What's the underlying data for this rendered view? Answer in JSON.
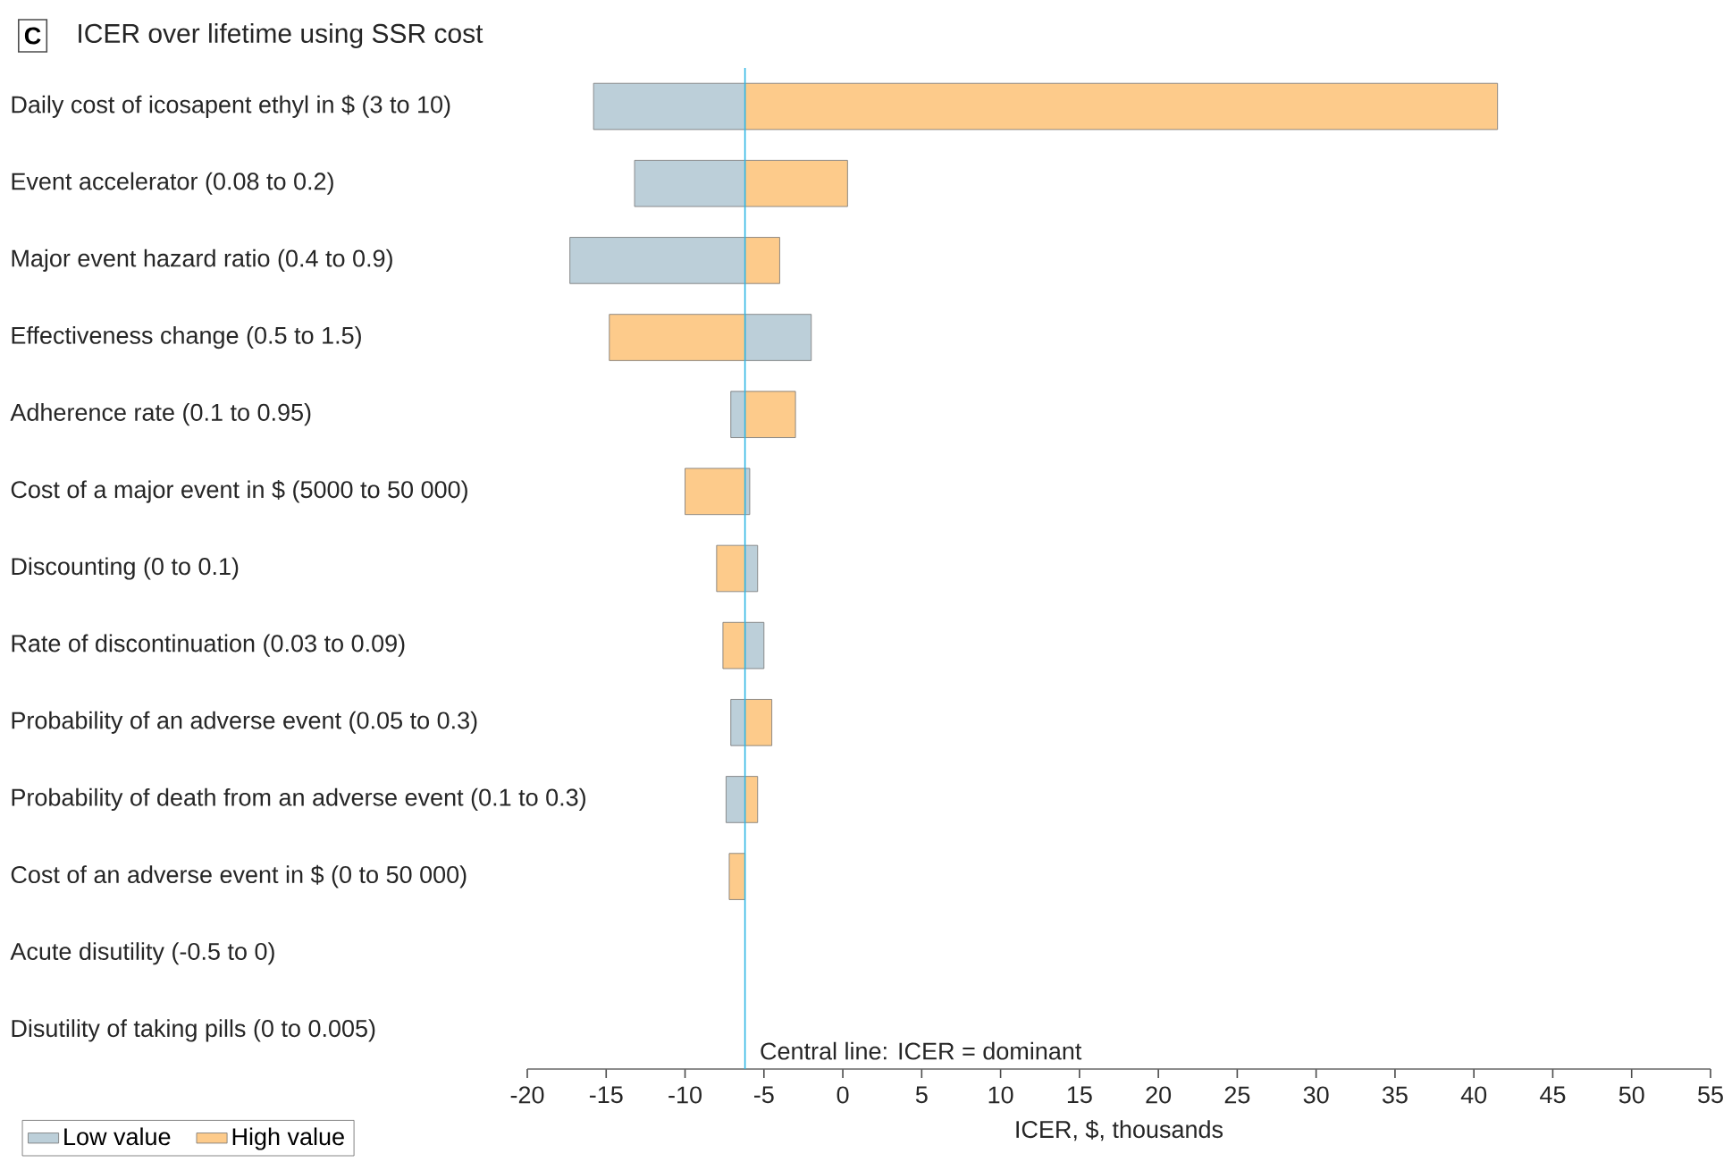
{
  "chart_data": {
    "type": "bar",
    "orientation": "horizontal",
    "title": "ICER over lifetime using SSR cost",
    "annotations": [
      "C"
    ],
    "categories": [
      "Daily cost of icosapent ethyl in $ (3 to 10)",
      "Event accelerator (0.08 to 0.2)",
      "Major event hazard ratio (0.4 to 0.9)",
      "Effectiveness change (0.5 to 1.5)",
      "Adherence rate (0.1 to 0.95)",
      "Cost of a major event in $ (5000 to 50 000)",
      "Discounting (0 to 0.1)",
      "Rate of discontinuation (0.03 to 0.09)",
      "Probability of an adverse event (0.05 to 0.3)",
      "Probability of death from an adverse event (0.1 to 0.3)",
      "Cost of an adverse event in $ (0 to 50 000)",
      "Acute disutility (-0.5 to 0)",
      "Disutility of taking pills  (0 to 0.005)"
    ],
    "series": [
      {
        "name": "Low value",
        "color": "#bccfd9",
        "base": [
          -6.2,
          -6.2,
          -6.2,
          -6.2,
          -6.2,
          -6.2,
          -6.2,
          -6.2,
          -6.2,
          -6.2,
          null,
          null,
          null
        ],
        "values": [
          -9.6,
          -7.0,
          -11.1,
          4.2,
          -0.9,
          0.3,
          0.8,
          1.2,
          -0.9,
          -1.2,
          null,
          null,
          null
        ]
      },
      {
        "name": "High value",
        "color": "#fdcb8b",
        "base": [
          -6.2,
          -6.2,
          -6.2,
          -6.2,
          -6.2,
          -6.2,
          -6.2,
          -6.2,
          -6.2,
          -6.2,
          -6.2,
          null,
          null
        ],
        "values": [
          47.7,
          6.5,
          2.2,
          -8.6,
          3.2,
          -3.8,
          -1.8,
          -1.4,
          1.7,
          0.8,
          -1.0,
          null,
          null
        ]
      }
    ],
    "xlabel": "ICER, $, thousands",
    "xlim": [
      -20,
      55
    ],
    "xticks": [
      -20,
      -15,
      -10,
      -5,
      0,
      5,
      10,
      15,
      20,
      25,
      30,
      35,
      40,
      45,
      50,
      55
    ],
    "ref_lines": [
      {
        "axis": "x",
        "value": -6.2,
        "label": "Central line: ICER = dominant",
        "color": "#31b7e5"
      }
    ],
    "legend": "bottom left"
  }
}
